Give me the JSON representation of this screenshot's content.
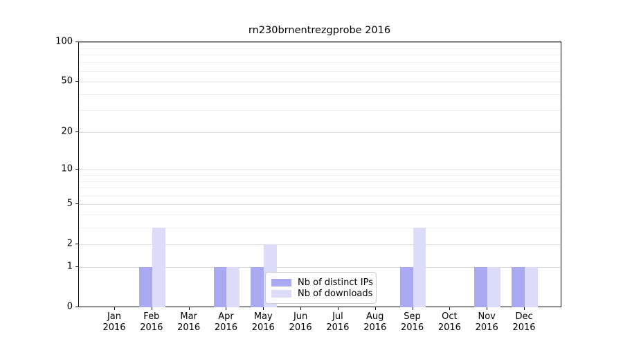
{
  "title": "rn230brnentrezgprobe 2016",
  "chart_data": {
    "type": "bar",
    "title": "rn230brnentrezgprobe 2016",
    "scale": "log1p",
    "categories": [
      "Jan",
      "Feb",
      "Mar",
      "Apr",
      "May",
      "Jun",
      "Jul",
      "Aug",
      "Sep",
      "Oct",
      "Nov",
      "Dec"
    ],
    "x_year": "2016",
    "series": [
      {
        "name": "Nb of distinct IPs",
        "color": "#a9a9f2",
        "values": [
          0,
          1,
          0,
          1,
          1,
          0,
          0,
          0,
          1,
          0,
          1,
          1
        ]
      },
      {
        "name": "Nb of downloads",
        "color": "#dcdcf8",
        "values": [
          0,
          3,
          0,
          1,
          2,
          0,
          0,
          0,
          3,
          0,
          1,
          1
        ]
      }
    ],
    "ylim": [
      0,
      100
    ],
    "y_major_ticks": [
      0,
      1,
      2,
      5,
      10,
      20,
      50,
      100
    ],
    "y_minor_gridlines": [
      3,
      4,
      6,
      7,
      8,
      9,
      30,
      40,
      60,
      70,
      80,
      90
    ],
    "grid": true,
    "legend_position": "lower center",
    "background_color": "#ffffff",
    "major_grid_color": "#dedede",
    "minor_grid_color": "#f1f1f1"
  },
  "legend": {
    "items": [
      {
        "label": "Nb of distinct IPs"
      },
      {
        "label": "Nb of downloads"
      }
    ]
  }
}
